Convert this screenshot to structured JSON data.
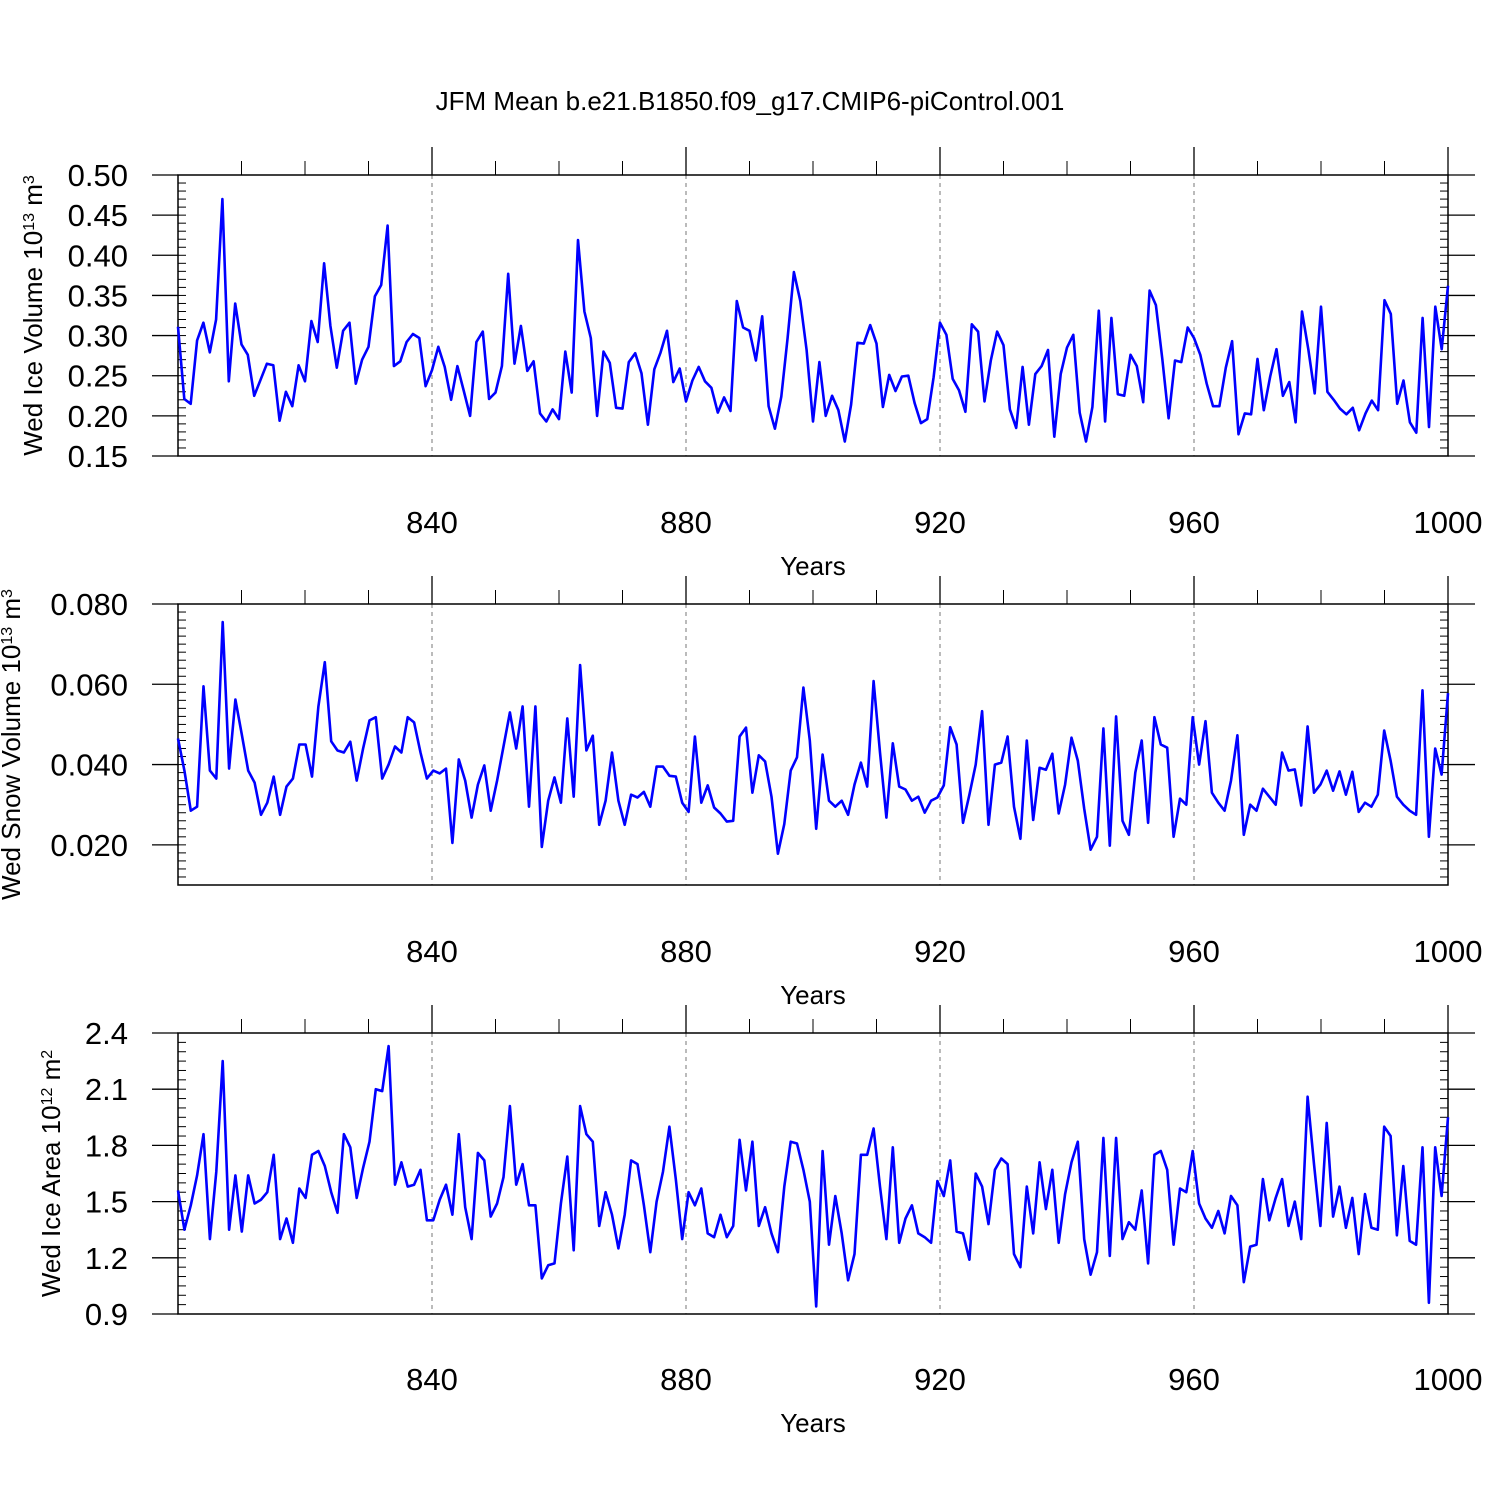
{
  "title": "JFM Mean b.e21.B1850.f09_g17.CMIP6-piControl.001",
  "chart_data": [
    {
      "type": "line",
      "ylabel": "Wed Ice Volume 10",
      "ylabel_exp": "13",
      "ylabel_unit": " m",
      "ylabel_unit_exp": "3",
      "xlabel": "Years",
      "xlim": [
        800,
        1000
      ],
      "ylim": [
        0.15,
        0.5
      ],
      "yticks": [
        0.15,
        0.2,
        0.25,
        0.3,
        0.35,
        0.4,
        0.45,
        0.5
      ],
      "ytick_labels": [
        "0.15",
        "0.20",
        "0.25",
        "0.30",
        "0.35",
        "0.40",
        "0.45",
        "0.50"
      ],
      "xticks": [
        840,
        880,
        920,
        960,
        1000
      ],
      "xtick_labels": [
        "840",
        "880",
        "920",
        "960",
        "1000"
      ],
      "grid_x": "dashed vertical lines at x ticks",
      "line_color": "#0000ff",
      "series": [
        {
          "name": "Wed Ice Volume",
          "values": [
            0.311,
            0.221,
            0.215,
            0.294,
            0.316,
            0.279,
            0.32,
            0.47,
            0.243,
            0.34,
            0.289,
            0.276,
            0.225,
            0.245,
            0.265,
            0.263,
            0.194,
            0.23,
            0.212,
            0.263,
            0.243,
            0.318,
            0.292,
            0.39,
            0.312,
            0.26,
            0.306,
            0.316,
            0.24,
            0.27,
            0.286,
            0.349,
            0.363,
            0.437,
            0.262,
            0.268,
            0.292,
            0.302,
            0.297,
            0.237,
            0.257,
            0.286,
            0.261,
            0.22,
            0.262,
            0.231,
            0.2,
            0.292,
            0.305,
            0.221,
            0.229,
            0.262,
            0.377,
            0.265,
            0.312,
            0.256,
            0.268,
            0.203,
            0.193,
            0.208,
            0.196,
            0.28,
            0.229,
            0.419,
            0.33,
            0.297,
            0.2,
            0.28,
            0.266,
            0.21,
            0.209,
            0.267,
            0.278,
            0.253,
            0.189,
            0.258,
            0.279,
            0.306,
            0.242,
            0.259,
            0.218,
            0.244,
            0.261,
            0.243,
            0.235,
            0.204,
            0.223,
            0.206,
            0.343,
            0.31,
            0.306,
            0.269,
            0.324,
            0.212,
            0.184,
            0.224,
            0.297,
            0.379,
            0.343,
            0.282,
            0.193,
            0.267,
            0.2,
            0.225,
            0.207,
            0.168,
            0.214,
            0.291,
            0.29,
            0.313,
            0.29,
            0.211,
            0.251,
            0.231,
            0.249,
            0.25,
            0.216,
            0.191,
            0.196,
            0.248,
            0.316,
            0.301,
            0.246,
            0.232,
            0.205,
            0.314,
            0.305,
            0.218,
            0.269,
            0.305,
            0.288,
            0.208,
            0.185,
            0.261,
            0.189,
            0.252,
            0.262,
            0.282,
            0.174,
            0.252,
            0.285,
            0.301,
            0.204,
            0.168,
            0.211,
            0.331,
            0.193,
            0.322,
            0.227,
            0.225,
            0.276,
            0.262,
            0.217,
            0.356,
            0.338,
            0.271,
            0.197,
            0.269,
            0.267,
            0.31,
            0.297,
            0.276,
            0.24,
            0.212,
            0.212,
            0.26,
            0.293,
            0.177,
            0.203,
            0.202,
            0.271,
            0.207,
            0.249,
            0.283,
            0.225,
            0.242,
            0.192,
            0.33,
            0.283,
            0.228,
            0.336,
            0.23,
            0.22,
            0.209,
            0.202,
            0.21,
            0.182,
            0.203,
            0.219,
            0.207,
            0.344,
            0.327,
            0.215,
            0.244,
            0.192,
            0.179,
            0.322,
            0.186,
            0.336,
            0.283,
            0.362
          ]
        }
      ]
    },
    {
      "type": "line",
      "ylabel": "Wed Snow Volume 10",
      "ylabel_exp": "13",
      "ylabel_unit": " m",
      "ylabel_unit_exp": "3",
      "xlabel": "Years",
      "xlim": [
        800,
        1000
      ],
      "ylim": [
        0.01,
        0.08
      ],
      "yticks": [
        0.02,
        0.04,
        0.06,
        0.08
      ],
      "ytick_labels": [
        "0.020",
        "0.040",
        "0.060",
        "0.080"
      ],
      "xticks": [
        840,
        880,
        920,
        960,
        1000
      ],
      "xtick_labels": [
        "840",
        "880",
        "920",
        "960",
        "1000"
      ],
      "grid_x": "dashed vertical lines at x ticks",
      "line_color": "#0000ff",
      "series": [
        {
          "name": "Wed Snow Volume",
          "values": [
            0.0465,
            0.0385,
            0.0285,
            0.0295,
            0.0595,
            0.0385,
            0.0365,
            0.0755,
            0.039,
            0.0562,
            0.0475,
            0.0385,
            0.0355,
            0.0275,
            0.0305,
            0.037,
            0.0275,
            0.0345,
            0.0365,
            0.045,
            0.045,
            0.037,
            0.0545,
            0.0655,
            0.0458,
            0.0435,
            0.043,
            0.0457,
            0.036,
            0.044,
            0.051,
            0.0518,
            0.0365,
            0.04,
            0.0445,
            0.043,
            0.0518,
            0.0505,
            0.043,
            0.0365,
            0.0385,
            0.0378,
            0.039,
            0.0205,
            0.0413,
            0.036,
            0.0268,
            0.035,
            0.0398,
            0.0285,
            0.036,
            0.0445,
            0.053,
            0.044,
            0.0545,
            0.0295,
            0.0545,
            0.0195,
            0.031,
            0.0368,
            0.0305,
            0.0515,
            0.032,
            0.0648,
            0.0435,
            0.0472,
            0.025,
            0.031,
            0.043,
            0.031,
            0.025,
            0.0325,
            0.0318,
            0.0332,
            0.0295,
            0.0395,
            0.0395,
            0.0372,
            0.037,
            0.0305,
            0.0282,
            0.047,
            0.0305,
            0.0348,
            0.0293,
            0.0278,
            0.0258,
            0.026,
            0.047,
            0.0492,
            0.033,
            0.0423,
            0.0408,
            0.032,
            0.0178,
            0.0252,
            0.0385,
            0.0418,
            0.0592,
            0.046,
            0.024,
            0.0425,
            0.031,
            0.0295,
            0.031,
            0.0275,
            0.035,
            0.0405,
            0.0345,
            0.0608,
            0.043,
            0.0268,
            0.0453,
            0.0345,
            0.0338,
            0.031,
            0.032,
            0.028,
            0.031,
            0.0318,
            0.0348,
            0.0493,
            0.045,
            0.0255,
            0.0325,
            0.04,
            0.0533,
            0.025,
            0.04,
            0.0405,
            0.047,
            0.0295,
            0.0215,
            0.046,
            0.0262,
            0.0392,
            0.0387,
            0.0427,
            0.0278,
            0.035,
            0.0467,
            0.041,
            0.029,
            0.0188,
            0.022,
            0.049,
            0.0198,
            0.052,
            0.026,
            0.0225,
            0.038,
            0.046,
            0.0255,
            0.0518,
            0.045,
            0.0442,
            0.022,
            0.0315,
            0.03,
            0.0518,
            0.04,
            0.0508,
            0.033,
            0.0305,
            0.0285,
            0.036,
            0.0473,
            0.0225,
            0.03,
            0.0285,
            0.034,
            0.032,
            0.03,
            0.043,
            0.0385,
            0.0388,
            0.0298,
            0.0495,
            0.033,
            0.035,
            0.0385,
            0.0335,
            0.0383,
            0.0325,
            0.0382,
            0.0282,
            0.0305,
            0.0295,
            0.0325,
            0.0485,
            0.041,
            0.032,
            0.03,
            0.0285,
            0.0275,
            0.0585,
            0.022,
            0.044,
            0.0375,
            0.0578
          ]
        }
      ]
    },
    {
      "type": "line",
      "ylabel": "Wed Ice Area 10",
      "ylabel_exp": "12",
      "ylabel_unit": " m",
      "ylabel_unit_exp": "2",
      "xlabel": "Years",
      "xlim": [
        800,
        1000
      ],
      "ylim": [
        0.9,
        2.4
      ],
      "yticks": [
        0.9,
        1.2,
        1.5,
        1.8,
        2.1,
        2.4
      ],
      "ytick_labels": [
        "0.9",
        "1.2",
        "1.5",
        "1.8",
        "2.1",
        "2.4"
      ],
      "xticks": [
        840,
        880,
        920,
        960,
        1000
      ],
      "xtick_labels": [
        "840",
        "880",
        "920",
        "960",
        "1000"
      ],
      "grid_x": "dashed vertical lines at x ticks",
      "line_color": "#0000ff",
      "series": [
        {
          "name": "Wed Ice Area",
          "values": [
            1.56,
            1.35,
            1.48,
            1.64,
            1.86,
            1.3,
            1.66,
            2.25,
            1.35,
            1.64,
            1.34,
            1.64,
            1.49,
            1.51,
            1.55,
            1.75,
            1.3,
            1.41,
            1.28,
            1.57,
            1.52,
            1.75,
            1.77,
            1.69,
            1.55,
            1.44,
            1.86,
            1.79,
            1.52,
            1.68,
            1.82,
            2.1,
            2.09,
            2.33,
            1.59,
            1.71,
            1.58,
            1.59,
            1.67,
            1.4,
            1.4,
            1.51,
            1.59,
            1.43,
            1.86,
            1.47,
            1.3,
            1.76,
            1.72,
            1.42,
            1.49,
            1.63,
            2.01,
            1.59,
            1.7,
            1.48,
            1.48,
            1.09,
            1.16,
            1.17,
            1.49,
            1.74,
            1.24,
            2.01,
            1.86,
            1.82,
            1.37,
            1.55,
            1.43,
            1.25,
            1.43,
            1.72,
            1.7,
            1.48,
            1.23,
            1.5,
            1.66,
            1.9,
            1.62,
            1.3,
            1.55,
            1.48,
            1.57,
            1.33,
            1.31,
            1.43,
            1.31,
            1.37,
            1.83,
            1.56,
            1.82,
            1.37,
            1.47,
            1.33,
            1.23,
            1.58,
            1.82,
            1.81,
            1.67,
            1.5,
            0.94,
            1.77,
            1.27,
            1.53,
            1.33,
            1.08,
            1.22,
            1.75,
            1.75,
            1.89,
            1.58,
            1.3,
            1.79,
            1.28,
            1.41,
            1.48,
            1.33,
            1.31,
            1.28,
            1.61,
            1.53,
            1.72,
            1.34,
            1.33,
            1.19,
            1.65,
            1.58,
            1.38,
            1.67,
            1.73,
            1.7,
            1.22,
            1.15,
            1.58,
            1.33,
            1.71,
            1.46,
            1.67,
            1.28,
            1.54,
            1.71,
            1.82,
            1.3,
            1.11,
            1.23,
            1.84,
            1.21,
            1.84,
            1.3,
            1.39,
            1.35,
            1.56,
            1.17,
            1.75,
            1.77,
            1.67,
            1.27,
            1.57,
            1.55,
            1.77,
            1.49,
            1.41,
            1.36,
            1.45,
            1.33,
            1.53,
            1.48,
            1.07,
            1.26,
            1.27,
            1.62,
            1.4,
            1.52,
            1.62,
            1.37,
            1.5,
            1.3,
            2.06,
            1.7,
            1.37,
            1.92,
            1.42,
            1.58,
            1.36,
            1.52,
            1.22,
            1.54,
            1.36,
            1.35,
            1.9,
            1.85,
            1.32,
            1.69,
            1.29,
            1.27,
            1.79,
            0.96,
            1.79,
            1.53,
            1.95
          ]
        }
      ]
    }
  ]
}
